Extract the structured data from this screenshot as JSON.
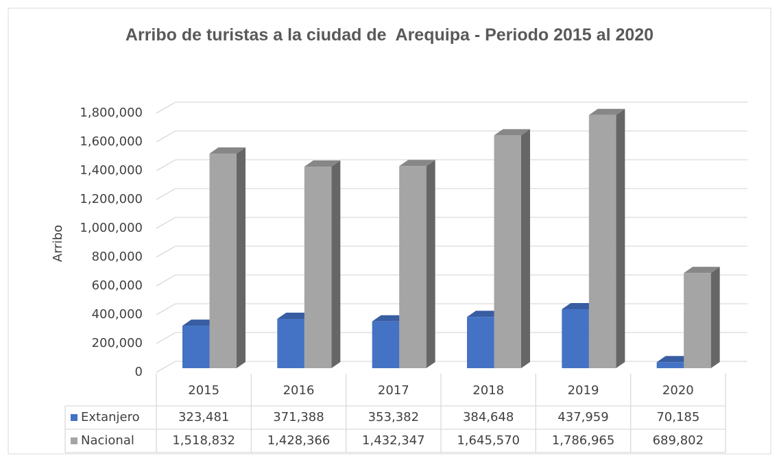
{
  "chart_data": {
    "type": "bar3d",
    "title": "Arribo de turistas a la ciudad de  Arequipa - Periodo 2015 al 2020",
    "y_label": "Arribo",
    "categories": [
      "2015",
      "2016",
      "2017",
      "2018",
      "2019",
      "2020"
    ],
    "series": [
      {
        "name": "Extanjero",
        "color": "#4472c4",
        "values": [
          323481,
          371388,
          353382,
          384648,
          437959,
          70185
        ],
        "value_labels": [
          "323,481",
          "371,388",
          "353,382",
          "384,648",
          "437,959",
          "70,185"
        ]
      },
      {
        "name": "Nacional",
        "color": "#a5a5a5",
        "values": [
          1518832,
          1428366,
          1432347,
          1645570,
          1786965,
          689802
        ],
        "value_labels": [
          "1,518,832",
          "1,428,366",
          "1,432,347",
          "1,645,570",
          "1,786,965",
          "689,802"
        ]
      }
    ],
    "ylim": [
      0,
      1800000
    ],
    "yticks": [
      0,
      {
        "value": 200000,
        "label": "200,000"
      },
      {
        "value": 400000,
        "label": "400,000"
      },
      {
        "value": 600000,
        "label": "600,000"
      },
      {
        "value": 800000,
        "label": "800,000"
      },
      {
        "value": 1000000,
        "label": "1,000,000"
      },
      {
        "value": 1200000,
        "label": "1,200,000"
      },
      {
        "value": 1400000,
        "label": "1,400,000"
      },
      {
        "value": 1600000,
        "label": "1,600,000"
      },
      {
        "value": 1800000,
        "label": "1,800,000"
      }
    ],
    "grid": true,
    "data_table": true
  }
}
